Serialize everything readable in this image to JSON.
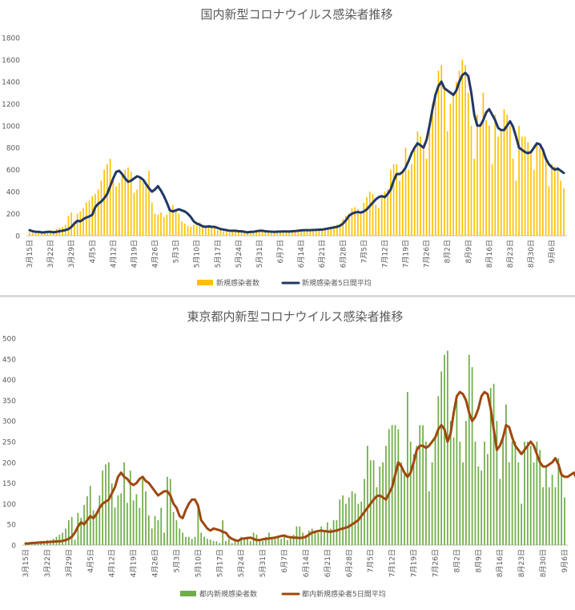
{
  "chart_data": [
    {
      "type": "bar",
      "title": "国内新型コロナウイルス感染者推移",
      "ylim": [
        0,
        1800
      ],
      "yticks": [
        0,
        200,
        400,
        600,
        800,
        1000,
        1200,
        1400,
        1600,
        1800
      ],
      "grid": false,
      "legend_position": "bottom",
      "start_date": "2020-03-15",
      "end_date": "2020-09-06",
      "x_tick_labels": [
        "3月15日",
        "3月22日",
        "3月29日",
        "4月5日",
        "4月12日",
        "4月19日",
        "4月26日",
        "5月3日",
        "5月10日",
        "5月17日",
        "5月24日",
        "5月31日",
        "6月7日",
        "6月14日",
        "6月21日",
        "6月28日",
        "7月5日",
        "7月12日",
        "7月19日",
        "7月26日",
        "8月2日",
        "8月9日",
        "8月16日",
        "8月23日",
        "8月30日",
        "9月6日"
      ],
      "series": [
        {
          "name": "新規感染者数",
          "type": "bar",
          "color": "#FFC000",
          "values": [
            30,
            25,
            20,
            40,
            35,
            45,
            30,
            50,
            45,
            60,
            70,
            80,
            100,
            180,
            210,
            130,
            200,
            220,
            250,
            300,
            320,
            360,
            380,
            420,
            500,
            600,
            650,
            700,
            500,
            450,
            480,
            550,
            600,
            620,
            580,
            390,
            420,
            540,
            480,
            450,
            590,
            300,
            200,
            190,
            210,
            170,
            190,
            250,
            280,
            240,
            200,
            130,
            110,
            90,
            80,
            100,
            90,
            120,
            80,
            90,
            90,
            75,
            70,
            50,
            60,
            40,
            35,
            30,
            40,
            35,
            45,
            30,
            40,
            25,
            30,
            40,
            50,
            45,
            40,
            35,
            30,
            35,
            40,
            30,
            30,
            35,
            40,
            35,
            50,
            45,
            40,
            45,
            55,
            50,
            55,
            60,
            55,
            60,
            50,
            55,
            70,
            80,
            90,
            100,
            110,
            150,
            180,
            200,
            250,
            260,
            240,
            220,
            300,
            350,
            400,
            380,
            280,
            250,
            350,
            400,
            420,
            600,
            650,
            650,
            500,
            600,
            800,
            600,
            650,
            800,
            950,
            900,
            800,
            700,
            1000,
            1200,
            1300,
            1500,
            1550,
            1350,
            950,
            1200,
            1300,
            1400,
            1500,
            1600,
            1550,
            1300,
            1000,
            700,
            1100,
            1000,
            1300,
            1050,
            1000,
            650,
            1100,
            900,
            950,
            1150,
            1100,
            1000,
            700,
            500,
            1000,
            900,
            900,
            850,
            750,
            600,
            850,
            800,
            750,
            700,
            450,
            650,
            630,
            600,
            500,
            430
          ]
        },
        {
          "name": "新規感染者5日間平均",
          "type": "line",
          "color": "#203864",
          "values": [
            50,
            40,
            35,
            35,
            30,
            30,
            35,
            35,
            30,
            35,
            40,
            45,
            50,
            60,
            80,
            110,
            135,
            130,
            150,
            165,
            175,
            190,
            260,
            290,
            310,
            340,
            380,
            450,
            520,
            580,
            590,
            560,
            520,
            490,
            500,
            520,
            540,
            530,
            510,
            470,
            430,
            400,
            420,
            450,
            410,
            360,
            300,
            230,
            220,
            230,
            240,
            230,
            220,
            200,
            170,
            130,
            110,
            100,
            85,
            80,
            85,
            80,
            80,
            70,
            60,
            55,
            50,
            45,
            45,
            45,
            40,
            40,
            35,
            30,
            35,
            35,
            40,
            45,
            45,
            40,
            38,
            36,
            35,
            36,
            37,
            38,
            38,
            37,
            40,
            42,
            45,
            48,
            50,
            50,
            50,
            52,
            53,
            55,
            55,
            60,
            65,
            70,
            75,
            80,
            90,
            110,
            140,
            180,
            200,
            210,
            215,
            210,
            220,
            240,
            270,
            300,
            330,
            350,
            360,
            350,
            380,
            420,
            500,
            560,
            560,
            580,
            620,
            680,
            750,
            800,
            840,
            820,
            800,
            870,
            1000,
            1150,
            1280,
            1360,
            1400,
            1340,
            1320,
            1300,
            1280,
            1320,
            1400,
            1460,
            1480,
            1450,
            1300,
            1100,
            1000,
            1000,
            1050,
            1120,
            1150,
            1100,
            1050,
            980,
            960,
            960,
            1000,
            1040,
            990,
            900,
            800,
            780,
            760,
            750,
            760,
            800,
            840,
            830,
            780,
            700,
            650,
            620,
            600,
            610,
            590,
            570
          ]
        }
      ]
    },
    {
      "type": "bar",
      "title": "東京都内新型コロナウイルス感染者推移",
      "ylim": [
        0,
        500
      ],
      "yticks": [
        0,
        50,
        100,
        150,
        200,
        250,
        300,
        350,
        400,
        450,
        500
      ],
      "grid": false,
      "legend_position": "bottom",
      "start_date": "2020-03-15",
      "end_date": "2020-09-06",
      "x_tick_labels": [
        "3月15日",
        "3月22日",
        "3月29日",
        "4月5日",
        "4月12日",
        "4月19日",
        "4月26日",
        "5月3日",
        "5月10日",
        "5月17日",
        "5月24日",
        "5月31日",
        "6月7日",
        "6月14日",
        "6月21日",
        "6月28日",
        "7月5日",
        "7月12日",
        "7月19日",
        "7月26日",
        "8月2日",
        "8月9日",
        "8月16日",
        "8月23日",
        "8月30日",
        "9月6日"
      ],
      "series": [
        {
          "name": "都内新規感染者数",
          "type": "bar",
          "color": "#70AD47",
          "values": [
            3,
            2,
            5,
            8,
            4,
            10,
            6,
            12,
            8,
            15,
            20,
            25,
            30,
            40,
            60,
            68,
            13,
            78,
            66,
            97,
            118,
            143,
            84,
            80,
            120,
            180,
            195,
            200,
            149,
            91,
            120,
            125,
            200,
            102,
            180,
            108,
            123,
            90,
            160,
            130,
            72,
            40,
            70,
            60,
            90,
            30,
            165,
            160,
            80,
            60,
            40,
            30,
            20,
            20,
            15,
            20,
            100,
            30,
            20,
            15,
            13,
            10,
            9,
            5,
            60,
            10,
            15,
            5,
            10,
            10,
            20,
            15,
            20,
            10,
            30,
            25,
            15,
            10,
            20,
            30,
            15,
            15,
            20,
            15,
            20,
            12,
            20,
            25,
            45,
            45,
            30,
            24,
            35,
            40,
            30,
            30,
            45,
            35,
            55,
            40,
            60,
            60,
            110,
            120,
            100,
            115,
            130,
            125,
            100,
            105,
            160,
            240,
            205,
            205,
            140,
            190,
            200,
            240,
            280,
            290,
            290,
            280,
            200,
            170,
            370,
            250,
            220,
            240,
            290,
            290,
            250,
            130,
            200,
            260,
            360,
            420,
            460,
            470,
            300,
            260,
            350,
            250,
            200,
            300,
            460,
            430,
            250,
            190,
            180,
            250,
            220,
            380,
            390,
            300,
            160,
            260,
            340,
            200,
            250,
            250,
            200,
            100,
            250,
            250,
            240,
            200,
            250,
            230,
            140,
            190,
            140,
            170,
            140,
            210,
            170,
            115
          ]
        },
        {
          "name": "都内新規感染者5日間平均",
          "type": "line",
          "color": "#9E480E",
          "values": [
            4,
            4,
            5,
            5,
            6,
            6,
            7,
            7,
            8,
            8,
            9,
            9,
            10,
            12,
            15,
            20,
            30,
            45,
            55,
            50,
            60,
            70,
            65,
            75,
            90,
            100,
            105,
            110,
            125,
            140,
            165,
            175,
            165,
            160,
            150,
            145,
            150,
            160,
            165,
            155,
            150,
            140,
            130,
            120,
            125,
            130,
            130,
            120,
            100,
            90,
            70,
            65,
            85,
            100,
            110,
            110,
            95,
            60,
            50,
            40,
            35,
            40,
            38,
            36,
            32,
            30,
            20,
            15,
            12,
            10,
            15,
            16,
            17,
            18,
            15,
            12,
            12,
            14,
            15,
            16,
            17,
            18,
            20,
            22,
            23,
            20,
            19,
            18,
            18,
            17,
            18,
            20,
            25,
            30,
            32,
            34,
            35,
            34,
            33,
            32,
            34,
            35,
            38,
            40,
            42,
            45,
            50,
            55,
            60,
            70,
            80,
            90,
            100,
            110,
            118,
            120,
            115,
            110,
            125,
            140,
            170,
            200,
            190,
            175,
            165,
            175,
            200,
            230,
            240,
            240,
            235,
            240,
            250,
            260,
            280,
            290,
            280,
            250,
            270,
            320,
            360,
            370,
            365,
            350,
            320,
            300,
            310,
            330,
            360,
            370,
            365,
            330,
            280,
            230,
            240,
            260,
            290,
            285,
            260,
            240,
            230,
            220,
            230,
            240,
            250,
            240,
            220,
            200,
            190,
            190,
            195,
            200,
            210,
            195,
            170,
            165,
            165,
            170,
            175,
            160
          ]
        }
      ]
    }
  ]
}
